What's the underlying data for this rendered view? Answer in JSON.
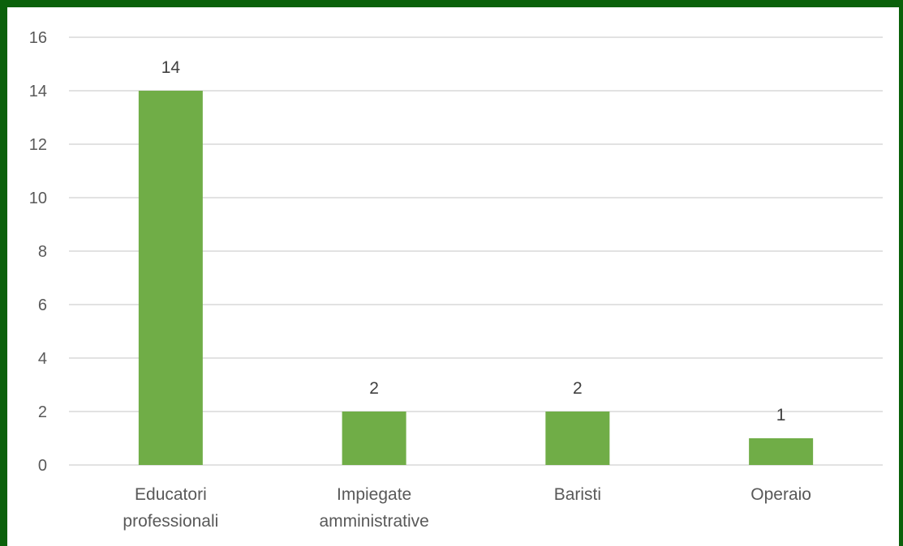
{
  "chart_data": {
    "type": "bar",
    "categories": [
      [
        "Educatori",
        "professionali"
      ],
      [
        "Impiegate",
        "amministrative"
      ],
      [
        "Baristi"
      ],
      [
        "Operaio"
      ]
    ],
    "values": [
      14,
      2,
      2,
      1
    ],
    "data_labels": [
      "14",
      "2",
      "2",
      "1"
    ],
    "yticks": [
      "0",
      "2",
      "4",
      "6",
      "8",
      "10",
      "12",
      "14",
      "16"
    ],
    "ylim": [
      0,
      16
    ],
    "grid": true,
    "colors": {
      "bar": "#70ad47",
      "frame": "#0b610b",
      "grid": "#d9d9d9"
    }
  }
}
